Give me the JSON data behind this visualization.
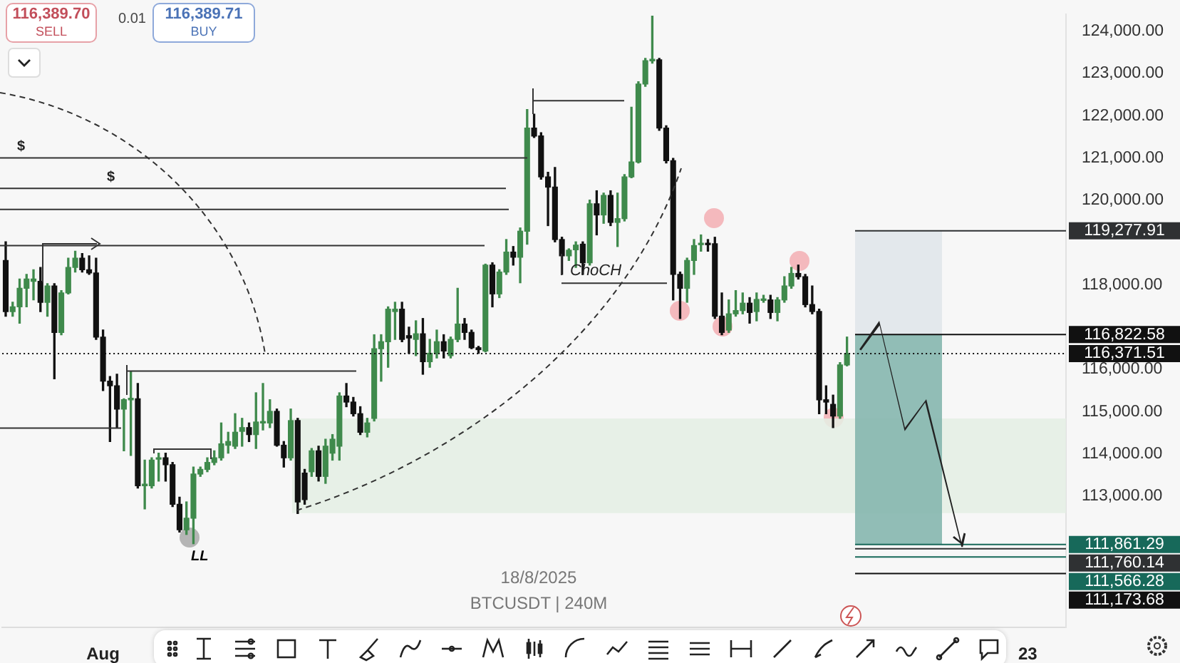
{
  "chart_data": {
    "type": "candlestick",
    "title": "18/8/2025",
    "subtitle": "BTCUSDT | 240M",
    "annotations": [
      "116,389.70",
      "SELL",
      "0.01",
      "116,389.71",
      "BUY",
      "LL"
    ],
    "categories": [
      null,
      null,
      null,
      null,
      null,
      null,
      null,
      null,
      null,
      null,
      null,
      null,
      null,
      null,
      "Aug",
      null,
      null,
      null,
      null,
      null,
      null,
      null,
      null,
      null,
      null,
      null,
      null,
      null,
      null,
      null,
      null,
      null,
      null,
      null,
      null,
      null,
      null,
      null,
      null,
      null,
      null,
      null,
      null,
      null,
      null,
      null,
      null,
      null,
      null,
      null,
      null,
      null,
      null,
      null,
      null,
      null,
      null,
      null,
      null,
      null,
      null,
      null,
      null,
      null,
      null,
      null,
      null,
      null,
      null,
      null,
      null,
      null,
      null,
      null,
      null,
      null,
      null,
      null,
      null,
      null,
      null,
      null,
      null,
      null,
      null,
      null,
      null,
      null,
      null,
      null,
      null,
      null,
      null,
      null,
      null,
      null,
      null,
      null,
      null,
      null,
      null,
      null,
      null,
      null,
      null,
      null,
      null,
      null,
      null,
      null,
      null,
      null,
      null,
      null,
      null,
      null,
      null,
      null,
      null,
      null,
      null,
      null,
      null,
      null,
      null,
      null,
      null,
      null,
      null,
      null,
      null,
      null,
      null,
      null,
      null,
      null,
      null,
      null,
      null,
      null,
      null,
      null,
      null,
      null,
      null,
      null,
      null,
      "23",
      null,
      null,
      null,
      null,
      null
    ],
    "colors": [
      "#111111",
      "#3f8a4c",
      "#3f8a4c",
      "#3f8a4c",
      "#3f8a4c",
      "#111111",
      "#3f8a4c",
      "#111111",
      "#3f8a4c",
      "#3f8a4c",
      "#3f8a4c",
      "#111111",
      "#111111",
      "#111111",
      "#111111",
      "#111111",
      "#111111",
      "#3f8a4c",
      "#3f8a4c",
      "#111111",
      "#3f8a4c",
      "#3f8a4c",
      "#3f8a4c",
      "#111111",
      "#111111",
      "#111111",
      "#3f8a4c",
      "#3f8a4c",
      "#3f8a4c",
      "#3f8a4c",
      "#3f8a4c",
      "#3f8a4c",
      "#3f8a4c",
      "#3f8a4c",
      "#3f8a4c",
      "#111111",
      "#3f8a4c",
      "#3f8a4c",
      "#3f8a4c",
      "#111111",
      "#111111",
      "#3f8a4c",
      "#111111",
      "#111111",
      "#3f8a4c",
      "#111111",
      "#3f8a4c",
      "#3f8a4c",
      "#3f8a4c",
      "#111111",
      "#111111",
      "#111111",
      "#3f8a4c",
      "#3f8a4c",
      "#3f8a4c",
      "#3f8a4c",
      "#3f8a4c",
      "#111111",
      "#111111",
      "#3f8a4c",
      "#111111",
      "#3f8a4c",
      "#3f8a4c",
      "#111111",
      "#3f8a4c",
      "#3f8a4c",
      "#111111",
      "#111111",
      "#111111",
      "#3f8a4c",
      "#111111",
      "#3f8a4c",
      "#3f8a4c",
      "#111111",
      "#3f8a4c",
      "#3f8a4c",
      "#111111",
      "#111111",
      "#111111",
      "#111111",
      "#111111",
      "#3f8a4c",
      "#3f8a4c",
      "#111111",
      "#3f8a4c",
      "#111111",
      "#3f8a4c",
      "#111111",
      "#3f8a4c",
      "#3f8a4c",
      "#3f8a4c",
      "#3f8a4c",
      "#3f8a4c",
      "#3f8a4c",
      "#111111",
      "#111111",
      "#111111",
      "#111111",
      "#3f8a4c",
      "#3f8a4c",
      "#3f8a4c",
      "#111111",
      "#111111",
      "#111111",
      "#3f8a4c",
      "#3f8a4c",
      "#3f8a4c",
      "#111111",
      "#3f8a4c",
      "#3f8a4c",
      "#111111",
      "#3f8a4c",
      "#3f8a4c",
      "#3f8a4c",
      "#111111",
      "#111111",
      "#111111",
      "#111111",
      "#111111",
      "#111111",
      "#3f8a4c",
      "#3f8a4c",
      null,
      null,
      null,
      null,
      null,
      null,
      null,
      null,
      null,
      null,
      null,
      null,
      null,
      null,
      null,
      null,
      null,
      null,
      null,
      null,
      null,
      null,
      null,
      null,
      null,
      null,
      null,
      null,
      null,
      null,
      null
    ],
    "ohlc": [
      [
        118576,
        119015,
        117258,
        117368
      ],
      [
        117368,
        117587,
        117258,
        117478
      ],
      [
        117478,
        118136,
        117093,
        117917
      ],
      [
        117917,
        118246,
        117478,
        118136
      ],
      [
        118081,
        118356,
        117642,
        118136
      ],
      [
        118081,
        118411,
        117368,
        117587
      ],
      [
        117587,
        118027,
        117258,
        117972
      ],
      [
        117972,
        118027,
        115776,
        116874
      ],
      [
        116874,
        117862,
        116819,
        117807
      ],
      [
        117807,
        118630,
        117785,
        118411
      ],
      [
        118411,
        118795,
        118301,
        118630
      ],
      [
        118630,
        118740,
        118301,
        118356
      ],
      [
        118356,
        118685,
        118246,
        118279
      ],
      [
        118279,
        118630,
        116709,
        116764
      ],
      [
        116764,
        116929,
        115501,
        115721
      ],
      [
        115721,
        115831,
        114293,
        115611
      ],
      [
        115611,
        115886,
        114623,
        115062
      ],
      [
        115062,
        115304,
        114074,
        115282
      ],
      [
        115282,
        115940,
        113964,
        115304
      ],
      [
        115304,
        115666,
        113195,
        113250
      ],
      [
        113250,
        113854,
        112701,
        113272
      ],
      [
        113250,
        113909,
        113195,
        113854
      ],
      [
        113876,
        114019,
        113360,
        113909
      ],
      [
        113909,
        114019,
        113360,
        113744
      ],
      [
        113744,
        113799,
        112756,
        112811
      ],
      [
        112811,
        112976,
        112152,
        112207
      ],
      [
        112207,
        112866,
        112097,
        112481
      ],
      [
        112481,
        113690,
        111878,
        113525
      ],
      [
        113525,
        113690,
        113470,
        113635
      ],
      [
        113635,
        113909,
        113580,
        113799
      ],
      [
        113799,
        114074,
        113744,
        113909
      ],
      [
        113909,
        114733,
        113854,
        114239
      ],
      [
        114206,
        114513,
        114019,
        114294
      ],
      [
        114184,
        114952,
        114129,
        114513
      ],
      [
        114535,
        114842,
        114184,
        114623
      ],
      [
        114623,
        114733,
        114293,
        114458
      ],
      [
        114458,
        115446,
        114129,
        114755
      ],
      [
        114733,
        115666,
        114568,
        114755
      ],
      [
        114733,
        115282,
        114623,
        115007
      ],
      [
        115007,
        115062,
        114184,
        114206
      ],
      [
        114206,
        114294,
        113690,
        113909
      ],
      [
        113909,
        115062,
        113854,
        114788
      ],
      [
        114788,
        114842,
        112592,
        112866
      ],
      [
        113547,
        113635,
        112811,
        112921
      ],
      [
        113580,
        114129,
        113470,
        114074
      ],
      [
        114074,
        114184,
        113360,
        113470
      ],
      [
        113470,
        114348,
        113305,
        114184
      ],
      [
        114019,
        114458,
        113854,
        114348
      ],
      [
        114184,
        115446,
        113854,
        115370
      ],
      [
        115370,
        115666,
        115117,
        115227
      ],
      [
        115227,
        115337,
        114897,
        114952
      ],
      [
        114952,
        115117,
        114458,
        114513
      ],
      [
        114513,
        114842,
        114403,
        114733
      ],
      [
        114843,
        116818,
        114780,
        116489
      ],
      [
        116489,
        116819,
        115721,
        116654
      ],
      [
        116654,
        117478,
        116050,
        117423
      ],
      [
        117368,
        117587,
        116709,
        117423
      ],
      [
        117423,
        117587,
        116654,
        116709
      ],
      [
        116797,
        116998,
        116380,
        116742
      ],
      [
        116709,
        117148,
        116325,
        116841
      ],
      [
        116841,
        117203,
        115885,
        116182
      ],
      [
        116182,
        116709,
        116050,
        116380
      ],
      [
        116380,
        116929,
        116270,
        116654
      ],
      [
        116654,
        116819,
        116270,
        116435
      ],
      [
        116325,
        116764,
        116270,
        116709
      ],
      [
        116709,
        117917,
        116654,
        117071
      ],
      [
        117071,
        117203,
        116709,
        116874
      ],
      [
        116874,
        116929,
        116489,
        116511
      ],
      [
        116511,
        116544,
        116380,
        116467
      ],
      [
        116435,
        118488,
        116413,
        118466
      ],
      [
        118466,
        118521,
        117478,
        117785
      ],
      [
        117785,
        118356,
        117697,
        118301
      ],
      [
        118301,
        119070,
        118246,
        118773
      ],
      [
        118773,
        118905,
        118466,
        118652
      ],
      [
        118652,
        119344,
        118048,
        119267
      ],
      [
        119267,
        122144,
        118960,
        121705
      ],
      [
        121705,
        122034,
        121485,
        121518
      ],
      [
        121518,
        121595,
        120497,
        120552
      ],
      [
        120552,
        120662,
        119399,
        120310
      ],
      [
        120310,
        120772,
        119015,
        119070
      ],
      [
        119070,
        119125,
        118246,
        118685
      ],
      [
        118685,
        118850,
        118576,
        118817
      ],
      [
        118828,
        119015,
        118411,
        118938
      ],
      [
        118960,
        119015,
        118246,
        118521
      ],
      [
        118521,
        120003,
        118466,
        119915
      ],
      [
        119915,
        120223,
        119180,
        119652
      ],
      [
        119652,
        120168,
        119454,
        120113
      ],
      [
        120113,
        120223,
        119399,
        119476
      ],
      [
        119476,
        120168,
        118905,
        119564
      ],
      [
        119564,
        120607,
        119509,
        120552
      ],
      [
        120552,
        122199,
        120530,
        120903
      ],
      [
        120903,
        122803,
        120881,
        122748
      ],
      [
        122748,
        123352,
        122693,
        123297
      ],
      [
        123297,
        124350,
        123242,
        123319
      ],
      [
        123319,
        123352,
        121650,
        121705
      ],
      [
        121705,
        121760,
        120881,
        120936
      ],
      [
        120936,
        120991,
        117642,
        118246
      ],
      [
        118246,
        118301,
        117203,
        117917
      ],
      [
        117917,
        118630,
        117587,
        118575
      ],
      [
        118575,
        119070,
        118246,
        118927
      ],
      [
        118949,
        119179,
        118795,
        118971
      ],
      [
        118971,
        119070,
        118795,
        118949
      ],
      [
        118971,
        119124,
        117203,
        117258
      ],
      [
        117258,
        117807,
        116819,
        116874
      ],
      [
        116929,
        117642,
        116874,
        117313
      ],
      [
        117313,
        117862,
        117258,
        117390
      ],
      [
        117390,
        117807,
        117313,
        117565
      ],
      [
        117565,
        117697,
        117093,
        117346
      ],
      [
        117368,
        117807,
        117148,
        117653
      ],
      [
        117631,
        117752,
        117587,
        117653
      ],
      [
        117642,
        117752,
        117203,
        117346
      ],
      [
        117346,
        117697,
        117148,
        117642
      ],
      [
        117642,
        118191,
        117587,
        117972
      ],
      [
        117972,
        118411,
        117917,
        118268
      ],
      [
        118268,
        118466,
        118136,
        118191
      ],
      [
        118191,
        118246,
        117477,
        117532
      ],
      [
        117532,
        117972,
        117313,
        117368
      ],
      [
        117368,
        117423,
        114952,
        115281
      ],
      [
        115281,
        115611,
        114952,
        115227
      ],
      [
        115172,
        115391,
        114623,
        114897
      ],
      [
        114897,
        116160,
        114842,
        116105
      ],
      [
        116105,
        116764,
        116083,
        116371.51
      ],
      null,
      null,
      null,
      null,
      null,
      null,
      null,
      null,
      null,
      null,
      null,
      null,
      null,
      null,
      null,
      null,
      null,
      null,
      null,
      null,
      null,
      null,
      null,
      null,
      null,
      null,
      null,
      null,
      null,
      null,
      null
    ],
    "ylim": [
      109900,
      124400
    ],
    "yticks": [
      {
        "value": 113000,
        "label": "113,000.00"
      },
      {
        "value": 114000,
        "label": "114,000.00"
      },
      {
        "value": 115000,
        "label": "115,000.00"
      },
      {
        "value": 116000,
        "label": "116,000.00"
      },
      {
        "value": 118000,
        "label": "118,000.00"
      },
      {
        "value": 120000,
        "label": "120,000.00"
      },
      {
        "value": 121000,
        "label": "121,000.00"
      },
      {
        "value": 122000,
        "label": "122,000.00"
      },
      {
        "value": 123000,
        "label": "123,000.00"
      },
      {
        "value": 124000,
        "label": "124,000.00"
      }
    ],
    "bands": [
      {
        "axis": "y",
        "from": 112600,
        "to": 114840,
        "color": "#e4efe4"
      },
      {
        "axis": "y",
        "from": 116822.58,
        "to": 119277.91,
        "color": "#dfe5ea"
      },
      {
        "axis": "y",
        "from": 111861.29,
        "to": 116822.58,
        "color": "#7fb3aa"
      }
    ],
    "ref_lines": [
      {
        "axis": "y",
        "value": 119277.91,
        "label": "119,277.91",
        "color": "#2f3133"
      },
      {
        "axis": "y",
        "value": 116822.58,
        "label": "116,822.58",
        "color": "#111111"
      },
      {
        "axis": "y",
        "value": 116371.51,
        "label": "116,371.51",
        "color": "#111111",
        "line_style": "dotted"
      },
      {
        "axis": "y",
        "value": 111861.29,
        "label": "111,861.29",
        "color": "#17695a"
      },
      {
        "axis": "y",
        "value": 111760.14,
        "label": "111,760.14",
        "color": "#2f3133"
      },
      {
        "axis": "y",
        "value": 111566.28,
        "label": "111,566.28",
        "color": "#17695a"
      },
      {
        "axis": "y",
        "value": 111173.68,
        "label": "111,173.68",
        "color": "#111111"
      },
      {
        "axis": "y",
        "value": 121002,
        "label": "$"
      },
      {
        "axis": "y",
        "value": 120278,
        "label": "$"
      },
      {
        "axis": "y",
        "value": 119784
      },
      {
        "axis": "y",
        "value": 118927
      },
      {
        "axis": "y",
        "value": 122353
      },
      {
        "axis": "y",
        "value": 118037,
        "label": "ChoCH"
      },
      {
        "axis": "y",
        "value": 115962
      },
      {
        "axis": "y",
        "value": 114612
      }
    ]
  }
}
